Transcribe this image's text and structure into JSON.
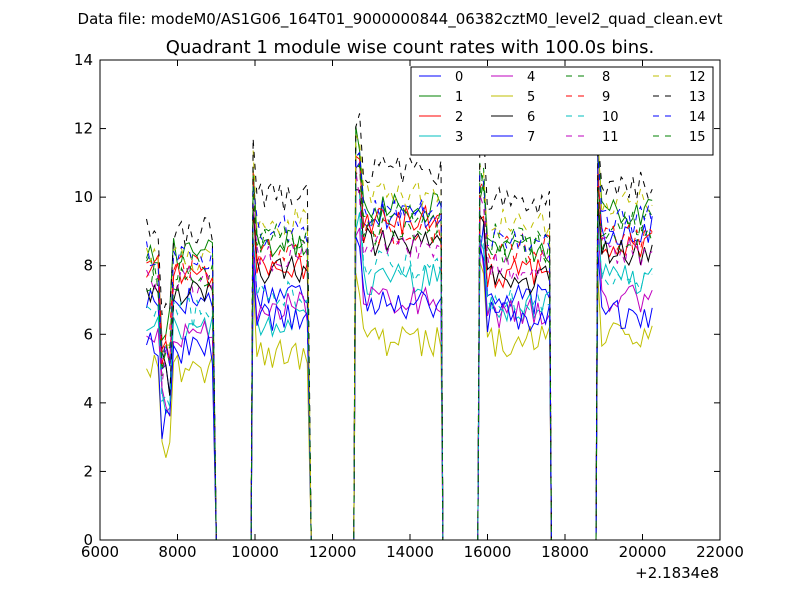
{
  "chart_data": {
    "type": "line",
    "suptitle": "Data file: modeM0/AS1G06_164T01_9000000844_06382cztM0_level2_quad_clean.evt",
    "title": "Quadrant 1 module wise count rates with 100.0s bins.",
    "xlabel": "",
    "ylabel": "",
    "x_offset_label": "+2.1834e8",
    "xlim": [
      6000,
      22000
    ],
    "ylim": [
      0,
      14
    ],
    "x_ticks": [
      6000,
      8000,
      10000,
      12000,
      14000,
      16000,
      18000,
      20000,
      22000
    ],
    "y_ticks": [
      0,
      2,
      4,
      6,
      8,
      10,
      12,
      14
    ],
    "grid": false,
    "legend_position": "upper right",
    "legend_columns": 4,
    "x_note": "x values are in seconds relative to the printed offset +2.1834e8; 100 s bins",
    "segments": [
      {
        "start": 7200,
        "end": 8950
      },
      {
        "start": 9950,
        "end": 11400
      },
      {
        "start": 12600,
        "end": 14800
      },
      {
        "start": 15800,
        "end": 17600
      },
      {
        "start": 18850,
        "end": 20250
      }
    ],
    "series": [
      {
        "name": "0",
        "color": "#0000ff",
        "dash": "solid",
        "levels": [
          7.0,
          7.2,
          9.5,
          7.0,
          9.0
        ]
      },
      {
        "name": "1",
        "color": "#008000",
        "dash": "solid",
        "levels": [
          8.4,
          8.6,
          9.7,
          8.5,
          9.5
        ]
      },
      {
        "name": "2",
        "color": "#ff0000",
        "dash": "solid",
        "levels": [
          7.8,
          8.0,
          9.3,
          7.8,
          8.6
        ]
      },
      {
        "name": "3",
        "color": "#00bfbf",
        "dash": "solid",
        "levels": [
          6.2,
          6.3,
          7.6,
          6.8,
          7.6
        ]
      },
      {
        "name": "4",
        "color": "#bf00bf",
        "dash": "solid",
        "levels": [
          6.0,
          6.8,
          7.0,
          6.6,
          7.0
        ]
      },
      {
        "name": "5",
        "color": "#bfbf00",
        "dash": "solid",
        "levels": [
          5.0,
          5.4,
          5.8,
          5.8,
          6.0
        ]
      },
      {
        "name": "6",
        "color": "#000000",
        "dash": "solid",
        "levels": [
          7.3,
          7.9,
          8.7,
          7.6,
          8.4
        ]
      },
      {
        "name": "7",
        "color": "#0000ff",
        "dash": "solid",
        "levels": [
          5.6,
          6.5,
          6.9,
          6.5,
          6.6
        ]
      },
      {
        "name": "8",
        "color": "#008000",
        "dash": "dashed",
        "levels": [
          8.0,
          8.8,
          9.4,
          8.8,
          9.3
        ]
      },
      {
        "name": "9",
        "color": "#ff0000",
        "dash": "dashed",
        "levels": [
          7.9,
          8.5,
          9.0,
          8.5,
          8.9
        ]
      },
      {
        "name": "10",
        "color": "#00bfbf",
        "dash": "dashed",
        "levels": [
          6.6,
          7.2,
          8.0,
          7.0,
          7.7
        ]
      },
      {
        "name": "11",
        "color": "#bf00bf",
        "dash": "dashed",
        "levels": [
          7.6,
          8.3,
          8.6,
          8.0,
          8.4
        ]
      },
      {
        "name": "12",
        "color": "#bfbf00",
        "dash": "dashed",
        "levels": [
          8.2,
          9.3,
          10.1,
          9.3,
          9.8
        ]
      },
      {
        "name": "13",
        "color": "#000000",
        "dash": "dashed",
        "levels": [
          9.0,
          10.0,
          10.8,
          9.9,
          10.3
        ]
      },
      {
        "name": "14",
        "color": "#0000ff",
        "dash": "dashed",
        "levels": [
          8.3,
          9.0,
          9.5,
          8.7,
          9.3
        ]
      },
      {
        "name": "15",
        "color": "#008000",
        "dash": "dashed",
        "levels": [
          7.7,
          8.7,
          9.0,
          8.5,
          8.8
        ]
      }
    ]
  }
}
